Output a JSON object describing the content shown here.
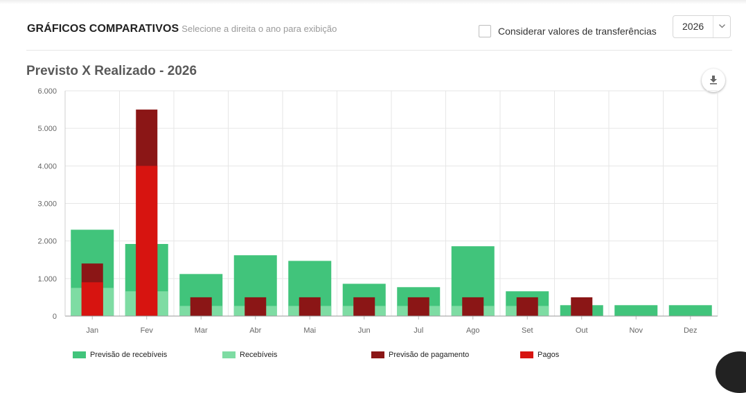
{
  "header": {
    "title": "GRÁFICOS COMPARATIVOS",
    "subtitle": "Selecione a direita o ano para exibição",
    "checkbox_label": "Considerar valores de transferências",
    "checkbox_checked": false,
    "year_value": "2026"
  },
  "icons": {
    "download": "download-icon",
    "chevron": "chevron-down-icon"
  },
  "chart_data": {
    "type": "bar",
    "title": "Previsto X Realizado - 2026",
    "xlabel": "",
    "ylabel": "",
    "ylim": [
      0,
      6000
    ],
    "y_ticks": [
      0,
      1000,
      2000,
      3000,
      4000,
      5000,
      6000
    ],
    "y_tick_labels": [
      "0",
      "1.000",
      "2.000",
      "3.000",
      "4.000",
      "5.000",
      "6.000"
    ],
    "grid": true,
    "legend_position": "bottom",
    "categories": [
      "Jan",
      "Fev",
      "Mar",
      "Abr",
      "Mai",
      "Jun",
      "Jul",
      "Ago",
      "Set",
      "Out",
      "Nov",
      "Dez"
    ],
    "series": [
      {
        "name": "Previsão de recebíveis",
        "color": "#41c47b",
        "values": [
          2300,
          1920,
          1120,
          1620,
          1470,
          860,
          770,
          1860,
          660,
          290,
          290,
          290
        ]
      },
      {
        "name": "Recebíveis",
        "color": "#7edca3",
        "values": [
          750,
          660,
          270,
          270,
          270,
          270,
          270,
          270,
          270,
          0,
          0,
          0
        ]
      },
      {
        "name": "Previsão de pagamento",
        "color": "#8b1616",
        "values": [
          1400,
          5500,
          500,
          500,
          500,
          500,
          500,
          500,
          500,
          500,
          0,
          0
        ]
      },
      {
        "name": "Pagos",
        "color": "#d71410",
        "values": [
          900,
          4000,
          0,
          0,
          0,
          0,
          0,
          0,
          0,
          0,
          0,
          0
        ]
      }
    ]
  }
}
